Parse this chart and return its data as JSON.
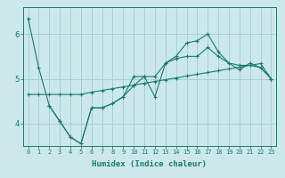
{
  "title": "",
  "xlabel": "Humidex (Indice chaleur)",
  "bg_color": "#cce8ea",
  "grid_color": "#9dcdd4",
  "line_color": "#1a7a6e",
  "xlim": [
    -0.5,
    23.5
  ],
  "ylim": [
    3.5,
    6.6
  ],
  "yticks": [
    4,
    5,
    6
  ],
  "xticks": [
    0,
    1,
    2,
    3,
    4,
    5,
    6,
    7,
    8,
    9,
    10,
    11,
    12,
    13,
    14,
    15,
    16,
    17,
    18,
    19,
    20,
    21,
    22,
    23
  ],
  "series1_x": [
    0,
    1,
    2,
    3,
    4,
    5,
    6,
    7,
    8,
    9,
    10,
    11,
    12,
    13,
    14,
    15,
    16,
    17,
    18,
    19,
    20,
    21,
    22,
    23
  ],
  "series1_y": [
    6.35,
    5.25,
    4.4,
    4.05,
    3.7,
    3.55,
    4.35,
    4.35,
    4.45,
    4.6,
    4.85,
    5.05,
    5.05,
    5.35,
    5.45,
    5.5,
    5.5,
    5.7,
    5.5,
    5.35,
    5.3,
    5.3,
    5.25,
    5.0
  ],
  "series2_x": [
    0,
    1,
    2,
    3,
    4,
    5,
    6,
    7,
    8,
    9,
    10,
    11,
    12,
    13,
    14,
    15,
    16,
    17,
    18,
    19,
    20,
    21,
    22,
    23
  ],
  "series2_y": [
    4.65,
    4.65,
    4.65,
    4.65,
    4.65,
    4.65,
    4.7,
    4.74,
    4.78,
    4.82,
    4.86,
    4.9,
    4.94,
    4.98,
    5.02,
    5.06,
    5.1,
    5.14,
    5.18,
    5.22,
    5.26,
    5.3,
    5.34,
    5.0
  ],
  "series3_x": [
    2,
    3,
    4,
    5,
    6,
    7,
    8,
    9,
    10,
    11,
    12,
    13,
    14,
    15,
    16,
    17,
    18,
    19,
    20,
    21,
    22,
    23
  ],
  "series3_y": [
    4.4,
    4.05,
    3.7,
    3.55,
    4.35,
    4.35,
    4.45,
    4.6,
    5.05,
    5.05,
    4.6,
    5.35,
    5.5,
    5.8,
    5.85,
    6.0,
    5.6,
    5.35,
    5.2,
    5.35,
    5.25,
    5.0
  ]
}
